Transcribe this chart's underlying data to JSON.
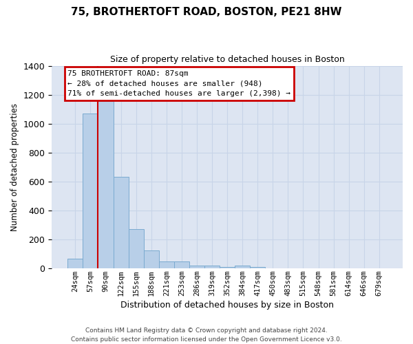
{
  "title": "75, BROTHERTOFT ROAD, BOSTON, PE21 8HW",
  "subtitle": "Size of property relative to detached houses in Boston",
  "xlabel": "Distribution of detached houses by size in Boston",
  "ylabel": "Number of detached properties",
  "categories": [
    "24sqm",
    "57sqm",
    "90sqm",
    "122sqm",
    "155sqm",
    "188sqm",
    "221sqm",
    "253sqm",
    "286sqm",
    "319sqm",
    "352sqm",
    "384sqm",
    "417sqm",
    "450sqm",
    "483sqm",
    "515sqm",
    "548sqm",
    "581sqm",
    "614sqm",
    "646sqm",
    "679sqm"
  ],
  "values": [
    65,
    1070,
    1155,
    630,
    270,
    125,
    48,
    48,
    20,
    18,
    10,
    20,
    10,
    0,
    0,
    0,
    0,
    0,
    0,
    0,
    0
  ],
  "bar_color": "#b8cfe8",
  "bar_edge_color": "#7aaad0",
  "vline_color": "#cc0000",
  "vline_x": 1.5,
  "annotation_text": "75 BROTHERTOFT ROAD: 87sqm\n← 28% of detached houses are smaller (948)\n71% of semi-detached houses are larger (2,398) →",
  "annotation_box_facecolor": "#ffffff",
  "annotation_box_edgecolor": "#cc0000",
  "ylim": [
    0,
    1400
  ],
  "yticks": [
    0,
    200,
    400,
    600,
    800,
    1000,
    1200,
    1400
  ],
  "grid_color": "#c8d4e8",
  "bg_color": "#dde5f2",
  "footer": "Contains HM Land Registry data © Crown copyright and database right 2024.\nContains public sector information licensed under the Open Government Licence v3.0."
}
